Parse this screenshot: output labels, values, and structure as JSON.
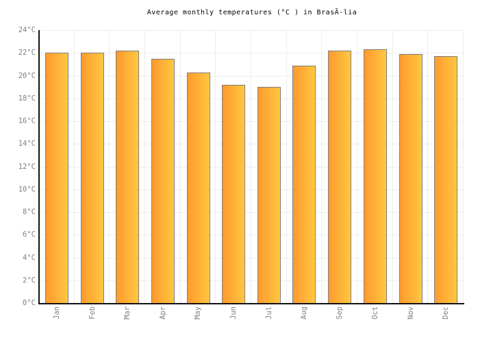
{
  "chart_data": {
    "type": "bar",
    "title": "Average monthly temperatures (°C ) in BrasÃ-lia",
    "categories": [
      "Jan",
      "Feb",
      "Mar",
      "Apr",
      "May",
      "Jun",
      "Jul",
      "Aug",
      "Sep",
      "Oct",
      "Nov",
      "Dec"
    ],
    "values": [
      22.0,
      22.0,
      22.2,
      21.5,
      20.3,
      19.2,
      19.0,
      20.9,
      22.2,
      22.3,
      21.9,
      21.7
    ],
    "unit": "°C",
    "xlabel": "",
    "ylabel": "",
    "ylim": [
      0,
      24
    ],
    "ytick_step": 2,
    "ytick_labels": [
      "0°C",
      "2°C",
      "4°C",
      "6°C",
      "8°C",
      "10°C",
      "12°C",
      "14°C",
      "16°C",
      "18°C",
      "20°C",
      "22°C",
      "24°C"
    ],
    "x_label_rotation": -90,
    "grid": true,
    "legend": "none",
    "colors": {
      "bar_gradient_left": "#FF9A2E",
      "bar_gradient_right": "#FFC741",
      "bar_border": "#7D7D7D",
      "gridline": "#EDEDED",
      "axis": "#111111",
      "tick_label": "#808080",
      "title": "#000000",
      "background": "#FFFFFF"
    }
  }
}
